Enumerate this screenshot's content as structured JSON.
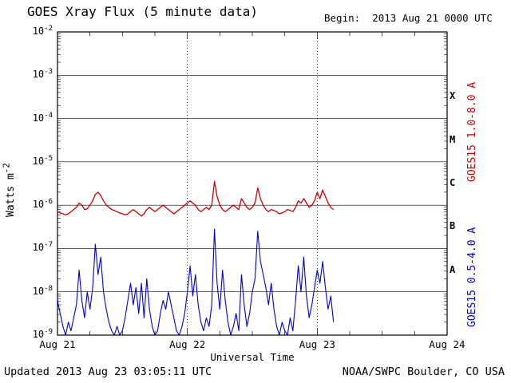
{
  "header": {
    "title": "GOES Xray Flux (5 minute data)",
    "begin": "Begin:  2013 Aug 21 0000 UTC"
  },
  "footer": {
    "updated": "Updated 2013 Aug 23 03:05:11 UTC",
    "credit": "NOAA/SWPC Boulder, CO USA"
  },
  "labels": {
    "y_base": "Watts m",
    "y_exp": "-2",
    "xlabel": "Universal Time",
    "goes_long": "GOES15 1.0-8.0 A",
    "goes_short": "GOES15 0.5-4.0 A"
  },
  "colors": {
    "long_red": "#cc0000",
    "short_blue": "#0000cc",
    "axis": "#000000"
  },
  "chart_data": {
    "type": "line",
    "title": "GOES Xray Flux (5 minute data)",
    "xlabel": "Universal Time",
    "ylabel": "Watts m-2",
    "y_scale": "log10",
    "ylim_log10": [
      -9,
      -2
    ],
    "xlim_hours": [
      0,
      72
    ],
    "x_epoch": "2013 Aug 21 0000 UTC",
    "x_ticks": [
      {
        "hours": 0,
        "label": "Aug 21"
      },
      {
        "hours": 24,
        "label": "Aug 22"
      },
      {
        "hours": 48,
        "label": "Aug 23"
      },
      {
        "hours": 72,
        "label": "Aug 24"
      }
    ],
    "ylog_ticks_exponents": [
      -2,
      -3,
      -4,
      -5,
      -6,
      -7,
      -8,
      -9
    ],
    "flare_classes": [
      {
        "label": "X",
        "log_mid": -3.5
      },
      {
        "label": "M",
        "log_mid": -4.5
      },
      {
        "label": "C",
        "log_mid": -5.5
      },
      {
        "label": "B",
        "log_mid": -6.5
      },
      {
        "label": "A",
        "log_mid": -7.5
      }
    ],
    "grid": {
      "h_solid_at_decades": true,
      "v_dotted_at_hours": [
        24,
        48
      ]
    },
    "x_start_hours": 0,
    "x_step_hours": 0.5,
    "series": [
      {
        "name": "GOES15 1.0-8.0 A",
        "color": "#cc0000",
        "log10_flux": [
          -6.15,
          -6.18,
          -6.2,
          -6.22,
          -6.2,
          -6.15,
          -6.1,
          -6.05,
          -5.95,
          -6.0,
          -6.1,
          -6.08,
          -6.0,
          -5.9,
          -5.75,
          -5.7,
          -5.78,
          -5.9,
          -6.0,
          -6.05,
          -6.1,
          -6.12,
          -6.15,
          -6.18,
          -6.2,
          -6.22,
          -6.2,
          -6.15,
          -6.1,
          -6.15,
          -6.2,
          -6.25,
          -6.2,
          -6.1,
          -6.05,
          -6.1,
          -6.15,
          -6.1,
          -6.05,
          -6.0,
          -6.05,
          -6.1,
          -6.15,
          -6.2,
          -6.15,
          -6.1,
          -6.05,
          -6.0,
          -5.95,
          -5.9,
          -5.95,
          -6.0,
          -6.1,
          -6.15,
          -6.1,
          -6.05,
          -6.1,
          -6.0,
          -5.45,
          -5.8,
          -6.0,
          -6.1,
          -6.15,
          -6.1,
          -6.05,
          -6.0,
          -6.05,
          -6.1,
          -5.85,
          -5.95,
          -6.05,
          -6.1,
          -6.05,
          -5.95,
          -5.6,
          -5.85,
          -6.0,
          -6.1,
          -6.15,
          -6.1,
          -6.12,
          -6.15,
          -6.2,
          -6.18,
          -6.15,
          -6.1,
          -6.12,
          -6.15,
          -6.05,
          -5.9,
          -5.95,
          -5.85,
          -5.95,
          -6.05,
          -6.0,
          -5.9,
          -5.7,
          -5.85,
          -5.65,
          -5.8,
          -5.95,
          -6.05,
          -6.1
        ]
      },
      {
        "name": "GOES15 0.5-4.0 A",
        "color": "#0000cc",
        "log10_flux": [
          -8.2,
          -8.5,
          -8.8,
          -9.0,
          -8.7,
          -8.9,
          -8.6,
          -8.3,
          -7.5,
          -8.2,
          -8.6,
          -8.0,
          -8.4,
          -7.9,
          -6.9,
          -7.6,
          -7.2,
          -8.0,
          -8.4,
          -8.7,
          -8.9,
          -9.0,
          -8.8,
          -9.0,
          -8.9,
          -8.6,
          -8.2,
          -7.8,
          -8.3,
          -7.9,
          -8.5,
          -7.8,
          -8.6,
          -7.7,
          -8.4,
          -8.8,
          -9.0,
          -8.9,
          -8.5,
          -8.2,
          -8.4,
          -8.0,
          -8.3,
          -8.6,
          -8.9,
          -9.0,
          -8.8,
          -8.5,
          -8.0,
          -7.4,
          -8.1,
          -7.6,
          -8.3,
          -8.7,
          -8.9,
          -8.6,
          -8.8,
          -8.3,
          -6.55,
          -7.8,
          -8.4,
          -7.5,
          -8.2,
          -8.7,
          -9.0,
          -8.8,
          -8.5,
          -8.9,
          -7.6,
          -8.3,
          -8.8,
          -8.5,
          -8.0,
          -7.7,
          -6.6,
          -7.3,
          -7.6,
          -7.9,
          -8.3,
          -7.8,
          -8.4,
          -8.8,
          -9.0,
          -8.7,
          -8.9,
          -9.0,
          -8.6,
          -8.9,
          -8.2,
          -7.4,
          -8.0,
          -7.2,
          -8.1,
          -8.6,
          -8.3,
          -7.9,
          -7.5,
          -7.8,
          -7.3,
          -7.9,
          -8.4,
          -8.1,
          -8.7
        ]
      }
    ]
  }
}
